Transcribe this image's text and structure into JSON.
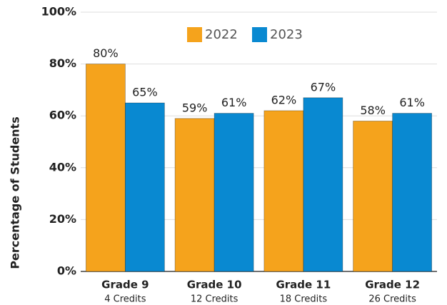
{
  "chart_data": {
    "type": "bar",
    "y_label": "Percentage of Students",
    "categories": [
      "Grade 9",
      "Grade 10",
      "Grade 11",
      "Grade 12"
    ],
    "category_sublabels": [
      "4 Credits",
      "12 Credits",
      "18 Credits",
      "26 Credits"
    ],
    "series": [
      {
        "name": "2022",
        "color": "#F5A31C",
        "values": [
          80,
          59,
          62,
          58
        ],
        "value_labels": [
          "80%",
          "59%",
          "62%",
          "58%"
        ]
      },
      {
        "name": "2023",
        "color": "#0989D1",
        "values": [
          65,
          61,
          67,
          61
        ],
        "value_labels": [
          "65%",
          "61%",
          "67%",
          "61%"
        ]
      }
    ],
    "ylim": [
      0,
      100
    ],
    "yticks": [
      {
        "value": 0,
        "label": "0%"
      },
      {
        "value": 20,
        "label": "20%"
      },
      {
        "value": 40,
        "label": "40%"
      },
      {
        "value": 60,
        "label": "60%"
      },
      {
        "value": 80,
        "label": "80%"
      },
      {
        "value": 100,
        "label": "100%"
      }
    ],
    "grid": true,
    "legend": "top"
  }
}
